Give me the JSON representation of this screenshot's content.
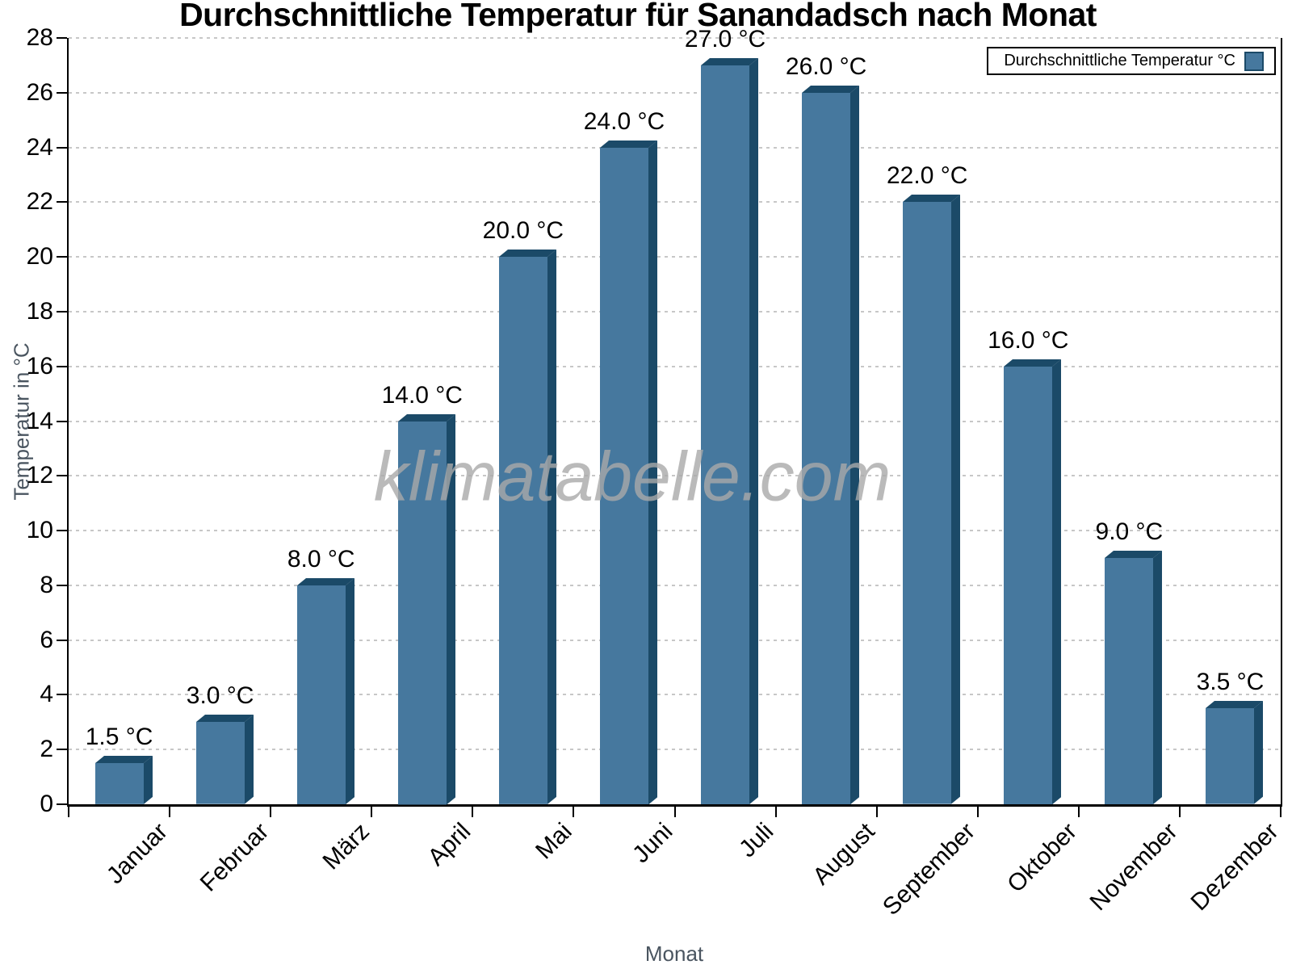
{
  "chart_data": {
    "type": "bar",
    "title": "Durchschnittliche Temperatur für Sanandadsch nach Monat",
    "xlabel": "Monat",
    "ylabel": "Temperatur in °C",
    "legend": [
      "Durchschnittliche Temperatur °C"
    ],
    "legend_position": "top-right",
    "watermark": "klimatabelle.com",
    "categories": [
      "Januar",
      "Februar",
      "März",
      "April",
      "Mai",
      "Juni",
      "Juli",
      "August",
      "September",
      "Oktober",
      "November",
      "Dezember"
    ],
    "values": [
      1.5,
      3.0,
      8.0,
      14.0,
      20.0,
      24.0,
      27.0,
      26.0,
      22.0,
      16.0,
      9.0,
      3.5
    ],
    "value_labels": [
      "1.5 °C",
      "3.0 °C",
      "8.0 °C",
      "14.0 °C",
      "20.0 °C",
      "24.0 °C",
      "27.0 °C",
      "26.0 °C",
      "22.0 °C",
      "16.0 °C",
      "9.0 °C",
      "3.5 °C"
    ],
    "ylim": [
      0,
      28
    ],
    "ytick_step": 2,
    "grid": "horizontal-dashed",
    "bar_style": "3d-extruded",
    "colors": {
      "bar_face": "#46789e",
      "bar_shade": "#1b4a68",
      "grid_line": "#c7c7c7",
      "axis": "#000000",
      "axis_title_text": "#4a5560",
      "watermark_text": "#a9a9a9"
    }
  }
}
